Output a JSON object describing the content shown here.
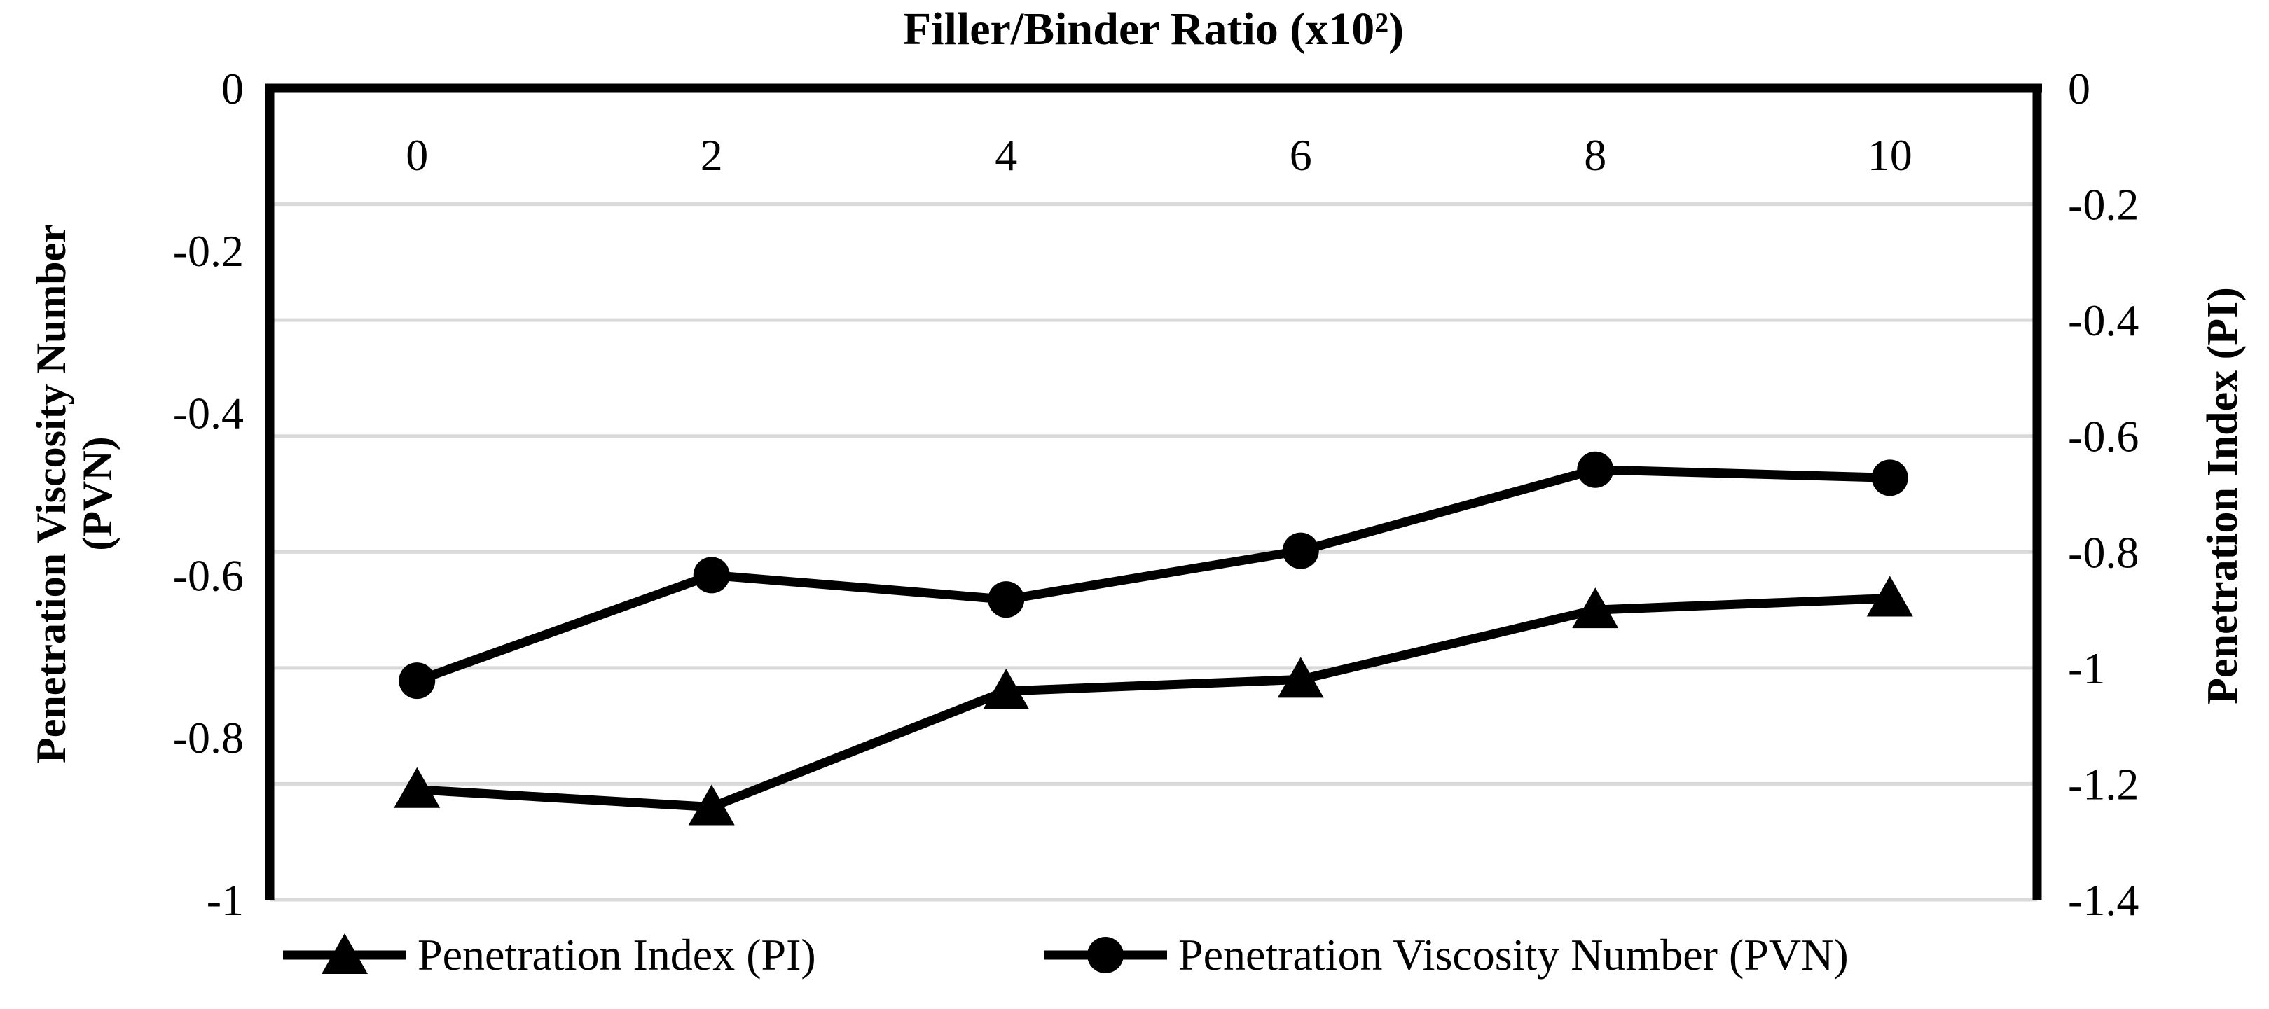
{
  "colors": {
    "series": "#000000",
    "gridline": "#d9d9d9",
    "text": "#000000",
    "background": "#ffffff"
  },
  "chart_data": {
    "type": "line",
    "title": "Filler/Binder Ratio (x10²)",
    "x_axis": {
      "categories": [
        "0",
        "2",
        "4",
        "6",
        "8",
        "10"
      ],
      "position": "top-inside"
    },
    "left_axis": {
      "label_lines": [
        "Penetration Viscosity Number",
        "(PVN)"
      ],
      "max": 0,
      "min": -1,
      "ticks": [
        0,
        -0.2,
        -0.4,
        -0.6,
        -0.8,
        -1
      ],
      "tick_labels": [
        "0",
        "-0.2",
        "-0.4",
        "-0.6",
        "-0.8",
        "-1"
      ]
    },
    "right_axis": {
      "label": "Penetration Index (PI)",
      "max": 0,
      "min": -1.4,
      "ticks": [
        0,
        -0.2,
        -0.4,
        -0.6,
        -0.8,
        -1,
        -1.2,
        -1.4
      ],
      "tick_labels": [
        "0",
        "-0.2",
        "-0.4",
        "-0.6",
        "-0.8",
        "-1",
        "-1.2",
        "-1.4"
      ]
    },
    "grid": true,
    "legend_position": "bottom",
    "series": [
      {
        "name": "Penetration Index (PI)",
        "marker": "triangle",
        "axis": "right",
        "values": [
          -1.21,
          -1.24,
          -1.04,
          -1.02,
          -0.9,
          -0.88
        ]
      },
      {
        "name": "Penetration Viscosity Number (PVN)",
        "marker": "circle",
        "axis": "left",
        "values": [
          -0.73,
          -0.6,
          -0.63,
          -0.57,
          -0.47,
          -0.48
        ]
      }
    ]
  }
}
